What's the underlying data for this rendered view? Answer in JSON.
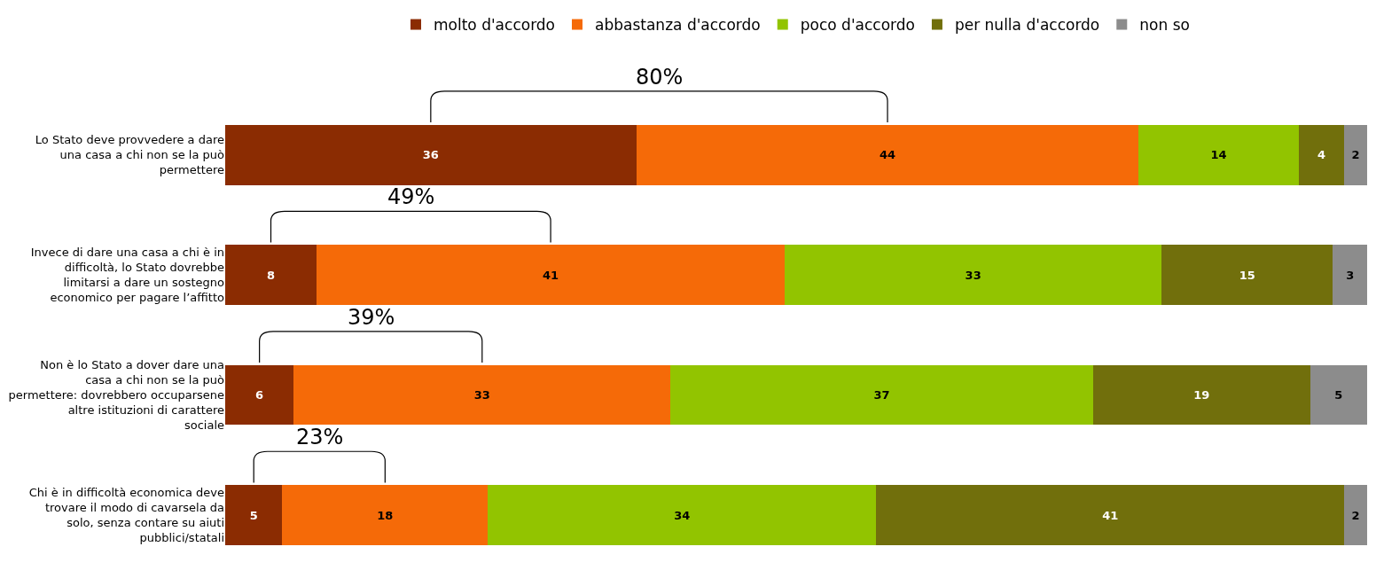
{
  "chart_data": {
    "type": "bar",
    "orientation": "horizontal",
    "stacked": true,
    "data_labels": true,
    "legend": "top",
    "tick_labels": "y",
    "categories": [
      "Lo Stato deve provvedere a dare una casa a chi non se la può permettere",
      "Invece di dare una casa a chi è in difficoltà, lo Stato dovrebbe limitarsi a dare un sostegno economico per pagare l’affitto",
      "Non è lo Stato a dover dare una casa a chi non se la può permettere: dovrebbero occuparsene altre istituzioni di carattere sociale",
      "Chi è in difficoltà economica deve trovare il modo di cavarsela da solo, senza contare su aiuti pubblici/statali"
    ],
    "series": [
      {
        "name": "molto d'accordo",
        "color": "#8b2c02",
        "values": [
          36,
          8,
          6,
          5
        ]
      },
      {
        "name": "abbastanza d'accordo",
        "color": "#f56a08",
        "values": [
          44,
          41,
          33,
          18
        ]
      },
      {
        "name": "poco d'accordo",
        "color": "#92c400",
        "values": [
          14,
          33,
          37,
          34
        ]
      },
      {
        "name": "per nulla d'accordo",
        "color": "#716f0c",
        "values": [
          4,
          15,
          19,
          41
        ]
      },
      {
        "name": "non so",
        "color": "#8c8c8c",
        "values": [
          2,
          3,
          5,
          2
        ]
      }
    ],
    "annotations": [
      "80%",
      "49%",
      "39%",
      "23%"
    ]
  }
}
